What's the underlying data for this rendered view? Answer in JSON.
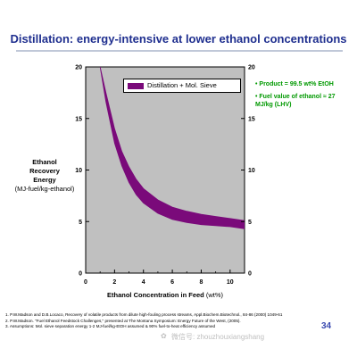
{
  "title": "Distillation: energy-intensive at lower ethanol concentrations",
  "chart_data": {
    "type": "area",
    "title": "Distillation: energy-intensive at lower ethanol concentrations",
    "xlabel": "Ethanol Concentration in Feed (wt%)",
    "ylabel_lines": [
      "Ethanol",
      "Recovery",
      "Energy",
      "(MJ-fuel/kg-ethanol)"
    ],
    "xlim": [
      0,
      11
    ],
    "ylim": [
      0,
      20
    ],
    "x_ticks": [
      0,
      2,
      4,
      6,
      8,
      10
    ],
    "y_ticks": [
      0,
      5,
      10,
      15,
      20
    ],
    "grid": false,
    "legend_position": "top-center",
    "band_color": "#7a0a7a",
    "plot_bg": "#c0c0c0",
    "series": [
      {
        "name": "Distillation + Mol. Sieve",
        "x": [
          1.0,
          1.4,
          2.0,
          2.5,
          3.0,
          3.5,
          4.0,
          5.0,
          6.0,
          7.0,
          8.0,
          9.0,
          10.0,
          11.0
        ],
        "upper": [
          20.0,
          17.5,
          14.0,
          11.8,
          10.3,
          9.1,
          8.2,
          7.1,
          6.4,
          6.0,
          5.7,
          5.5,
          5.3,
          5.1
        ],
        "lower": [
          20.0,
          16.6,
          12.6,
          10.4,
          8.8,
          7.6,
          6.8,
          5.8,
          5.2,
          4.9,
          4.7,
          4.6,
          4.5,
          4.3
        ]
      }
    ]
  },
  "notes": [
    "• Product = 99.5 wt% EtOH",
    "• Fuel value of ethanol ≈ 27 MJ/kg (LHV)"
  ],
  "footnotes": [
    "1.  P.W.Madson and D.B.Locaco, Recovery of volatile products from dilute high-fouling process streams, Appl.Biochem.Biotechnol., 84-86 (2000) 1049-61",
    "2.  P.W.Madson. \"Fuel Ethanol Feedstock Challenges,\" presented at The Montana Symposium: Energy Future of the West, (2005).",
    "3.  Assumptions: Mol. sieve separation energy 1-2 MJ-fuel/kg-EtOH assumed & 90% fuel-to-heat efficiency assumed"
  ],
  "page_number": "34",
  "watermark": "微信号: zhouzhouxiangshang"
}
